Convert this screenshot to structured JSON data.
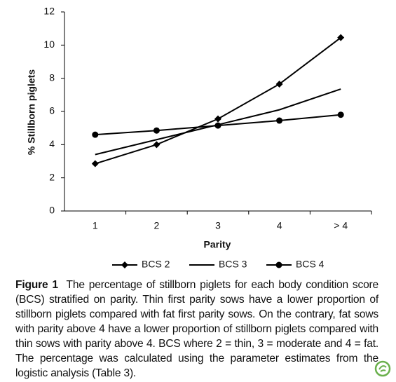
{
  "chart_data": {
    "type": "line",
    "x_label": "Parity",
    "y_label": "% Stillborn piglets",
    "categories": [
      "1",
      "2",
      "3",
      "4",
      "> 4"
    ],
    "series": [
      {
        "name": "BCS 2",
        "color": "#000000",
        "marker": "diamond",
        "values": [
          2.85,
          4.0,
          5.55,
          7.65,
          10.45
        ]
      },
      {
        "name": "BCS 3",
        "color": "#000000",
        "marker": "none",
        "values": [
          3.4,
          4.3,
          5.2,
          6.1,
          7.35
        ]
      },
      {
        "name": "BCS 4",
        "color": "#000000",
        "marker": "circle",
        "values": [
          4.6,
          4.85,
          5.15,
          5.45,
          5.8
        ]
      }
    ],
    "ylim": [
      0,
      12
    ],
    "yticks": [
      0,
      2,
      4,
      6,
      8,
      10,
      12
    ],
    "grid": false,
    "legend": "bottom"
  },
  "caption": {
    "label": "Figure 1",
    "text": "The percentage of stillborn piglets for each body condition score (BCS) stratified on parity. Thin first parity sows have a lower proportion of stillborn piglets compared with fat first parity sows. On the contrary, fat sows with parity above 4 have a lower proportion of stillborn piglets compared with thin sows with parity above 4. BCS where 2 = thin, 3 = moderate and 4 = fat. The percentage was calculated using the parameter estimates from the logistic analysis (Table 3)."
  }
}
